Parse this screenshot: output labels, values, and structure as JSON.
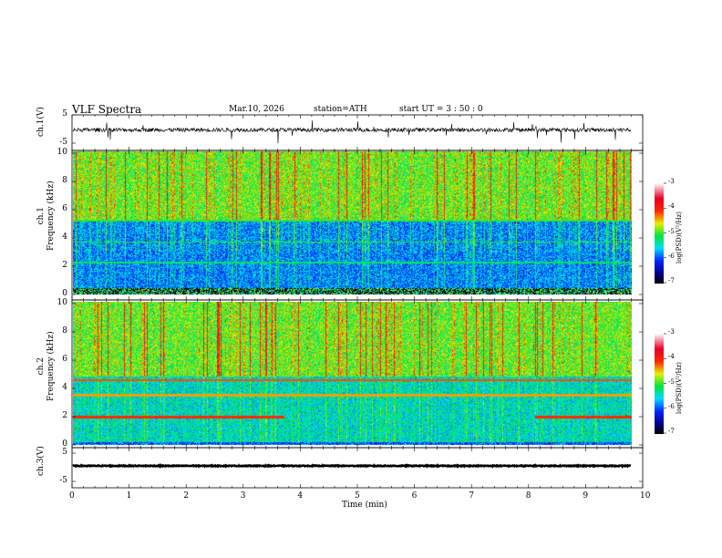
{
  "header": {
    "title": "VLF  Spectra",
    "date": "Mar.10, 2026",
    "station": "station=ATH",
    "start": "start  UT  =   3  : 50 : 0"
  },
  "chart_data": {
    "type": "heatmap",
    "title": "VLF  Spectra",
    "xlabel": "Time (min)",
    "xlim": [
      0,
      10
    ],
    "x_ticks": [
      "0",
      "1",
      "2",
      "3",
      "4",
      "5",
      "6",
      "7",
      "8",
      "9",
      "10"
    ],
    "data_end_min": 9.8,
    "panels": [
      {
        "name": "ch.1 waveform",
        "ylabel": "ch.1(V)",
        "ylim": [
          -5,
          5
        ],
        "y_ticks": [
          "5",
          "-5"
        ],
        "mean_value": -0.3
      },
      {
        "name": "ch.1 spectrogram",
        "ylabel": "ch.1\nFrequency (kHz)",
        "ylim": [
          0,
          10
        ],
        "y_ticks": [
          "0",
          "2",
          "4",
          "6",
          "8",
          "10"
        ],
        "colorbar": {
          "label": "log(PSD)(V²/Hz)",
          "range": [
            -7,
            -3
          ],
          "ticks": [
            "-3",
            "-4",
            "-5",
            "-6",
            "-7"
          ]
        },
        "features": [
          "broadband impulsive sferics 5-10 kHz (log PSD -5 to -3.5)",
          "low background 0.5-5 kHz (log PSD -6 to -5.5)",
          "narrowband line ~2.2 kHz",
          "dark band below 0.5 kHz"
        ]
      },
      {
        "name": "ch.2 spectrogram",
        "ylabel": "ch.2\nFrequency (kHz)",
        "ylim": [
          0,
          10
        ],
        "y_ticks": [
          "0",
          "2",
          "4",
          "6",
          "8",
          "10"
        ],
        "colorbar": {
          "label": "log(PSD)(V²/Hz)",
          "range": [
            -7,
            -3
          ],
          "ticks": [
            "-3",
            "-4",
            "-5",
            "-6",
            "-7"
          ]
        },
        "features": [
          "narrowband line ~4.5 kHz",
          "narrowband line ~3.5 kHz",
          "line ~2 kHz at 0-3.7 min and 8.1-9.8 min"
        ]
      },
      {
        "name": "ch.3 waveform",
        "ylabel": "ch.3(V)",
        "ylim": [
          -5,
          5
        ],
        "y_ticks": [
          "5",
          "-5"
        ],
        "mean_value": 0.5
      }
    ]
  }
}
